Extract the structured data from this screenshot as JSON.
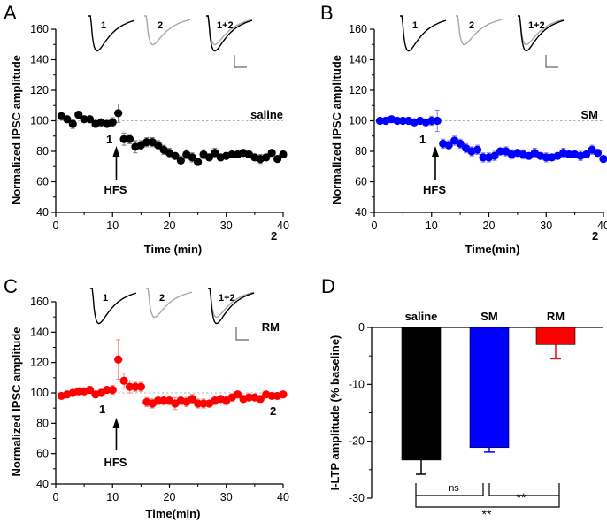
{
  "chart_data": [
    {
      "id": "A",
      "type": "scatter",
      "panel_label": "A",
      "condition": "saline",
      "xlabel": "Time (min)",
      "ylabel": "Normalized IPSC amplitude",
      "xlim": [
        0,
        40
      ],
      "ylim": [
        40,
        160
      ],
      "x_ticks": [
        "0",
        "10",
        "20",
        "30",
        "40"
      ],
      "y_ticks": [
        "40",
        "60",
        "80",
        "100",
        "120",
        "140",
        "160"
      ],
      "color": "#000000",
      "baseline": 100,
      "stimulus_label": "HFS",
      "stimulus_time": 10.5,
      "annotations": [
        "1",
        "2"
      ],
      "inset_labels": [
        "1",
        "2",
        "1+2"
      ],
      "x": [
        1,
        2,
        3,
        4,
        5,
        6,
        7,
        8,
        9,
        10,
        11,
        12,
        13,
        14,
        15,
        16,
        17,
        18,
        19,
        20,
        21,
        22,
        23,
        24,
        25,
        26,
        27,
        28,
        29,
        30,
        31,
        32,
        33,
        34,
        35,
        36,
        37,
        38,
        39,
        40
      ],
      "values": [
        103,
        101,
        98,
        104,
        101,
        101,
        98,
        99,
        98,
        99,
        105,
        88,
        88,
        83,
        84,
        86,
        86,
        84,
        81,
        79,
        77,
        74,
        78,
        76,
        73,
        78,
        76,
        79,
        76,
        77,
        78,
        78,
        79,
        78,
        76,
        75,
        76,
        79,
        75,
        78
      ],
      "errors": [
        2,
        2,
        3,
        2,
        2,
        2,
        2,
        2,
        2,
        3,
        6,
        4,
        3,
        4,
        3,
        3,
        3,
        3,
        3,
        3,
        2,
        3,
        3,
        3,
        2,
        3,
        2,
        3,
        2,
        2,
        2,
        2,
        2,
        2,
        2,
        3,
        2,
        2,
        2,
        2
      ]
    },
    {
      "id": "B",
      "type": "scatter",
      "panel_label": "B",
      "condition": "SM",
      "xlabel": "Time(min)",
      "ylabel": "Normalized IPSC amplitude",
      "xlim": [
        0,
        40
      ],
      "ylim": [
        40,
        160
      ],
      "x_ticks": [
        "0",
        "10",
        "20",
        "30",
        "40"
      ],
      "y_ticks": [
        "40",
        "60",
        "80",
        "100",
        "120",
        "140",
        "160"
      ],
      "color": "#0000ff",
      "baseline": 100,
      "stimulus_label": "HFS",
      "stimulus_time": 10.5,
      "annotations": [
        "1",
        "2"
      ],
      "inset_labels": [
        "1",
        "2",
        "1+2"
      ],
      "x": [
        1,
        2,
        3,
        4,
        5,
        6,
        7,
        8,
        9,
        10,
        11,
        12,
        13,
        14,
        15,
        16,
        17,
        18,
        19,
        20,
        21,
        22,
        23,
        24,
        25,
        26,
        27,
        28,
        29,
        30,
        31,
        32,
        33,
        34,
        35,
        36,
        37,
        38,
        39,
        40
      ],
      "values": [
        100,
        100,
        101,
        100,
        100,
        100,
        99,
        100,
        99,
        100,
        100,
        85,
        84,
        87,
        85,
        82,
        80,
        81,
        76,
        76,
        77,
        80,
        80,
        78,
        79,
        78,
        77,
        79,
        77,
        76,
        76,
        77,
        79,
        78,
        78,
        77,
        78,
        81,
        79,
        75
      ],
      "errors": [
        2,
        2,
        2,
        2,
        2,
        2,
        2,
        2,
        2,
        3,
        7,
        3,
        3,
        3,
        3,
        3,
        3,
        3,
        3,
        3,
        3,
        2,
        3,
        3,
        2,
        3,
        2,
        3,
        2,
        3,
        2,
        2,
        3,
        2,
        2,
        3,
        2,
        3,
        2,
        2
      ]
    },
    {
      "id": "C",
      "type": "scatter",
      "panel_label": "C",
      "condition": "RM",
      "xlabel": "Time(min)",
      "ylabel": "Normalized IPSC amplitude",
      "xlim": [
        0,
        40
      ],
      "ylim": [
        40,
        160
      ],
      "x_ticks": [
        "0",
        "10",
        "20",
        "30",
        "40"
      ],
      "y_ticks": [
        "40",
        "60",
        "80",
        "100",
        "120",
        "140",
        "160"
      ],
      "color": "#ff0000",
      "baseline": 100,
      "stimulus_label": "HFS",
      "stimulus_time": 10.5,
      "annotations": [
        "1",
        "2"
      ],
      "inset_labels": [
        "1",
        "2",
        "1+2"
      ],
      "x": [
        1,
        2,
        3,
        4,
        5,
        6,
        7,
        8,
        9,
        10,
        11,
        12,
        13,
        14,
        15,
        16,
        17,
        18,
        19,
        20,
        21,
        22,
        23,
        24,
        25,
        26,
        27,
        28,
        29,
        30,
        31,
        32,
        33,
        34,
        35,
        36,
        37,
        38,
        39,
        40
      ],
      "values": [
        98,
        99,
        100,
        101,
        101,
        102,
        99,
        100,
        102,
        102,
        122,
        108,
        104,
        104,
        104,
        94,
        93,
        95,
        95,
        95,
        93,
        95,
        94,
        96,
        93,
        93,
        93,
        95,
        96,
        95,
        97,
        99,
        96,
        97,
        97,
        96,
        99,
        98,
        98,
        99
      ],
      "errors": [
        2,
        2,
        2,
        2,
        2,
        2,
        2,
        2,
        2,
        3,
        13,
        5,
        4,
        3,
        3,
        3,
        3,
        3,
        3,
        3,
        4,
        3,
        3,
        3,
        3,
        3,
        2,
        3,
        2,
        3,
        2,
        2,
        2,
        2,
        2,
        2,
        2,
        2,
        2,
        2
      ]
    },
    {
      "id": "D",
      "type": "bar",
      "panel_label": "D",
      "ylabel": "I-LTP amplitude (% baseline)",
      "categories": [
        "saline",
        "SM",
        "RM"
      ],
      "values": [
        -23.3,
        -21.1,
        -3.0
      ],
      "errors": [
        2.5,
        0.8,
        2.5
      ],
      "colors": [
        "#000000",
        "#0000ff",
        "#ff0000"
      ],
      "ylim": [
        -30,
        0
      ],
      "y_ticks": [
        "-30",
        "-20",
        "-10",
        "0"
      ],
      "significance": [
        {
          "pair": [
            "saline",
            "SM"
          ],
          "label": "ns"
        },
        {
          "pair": [
            "SM",
            "RM"
          ],
          "label": "**"
        },
        {
          "pair": [
            "saline",
            "RM"
          ],
          "label": "**"
        }
      ]
    }
  ]
}
